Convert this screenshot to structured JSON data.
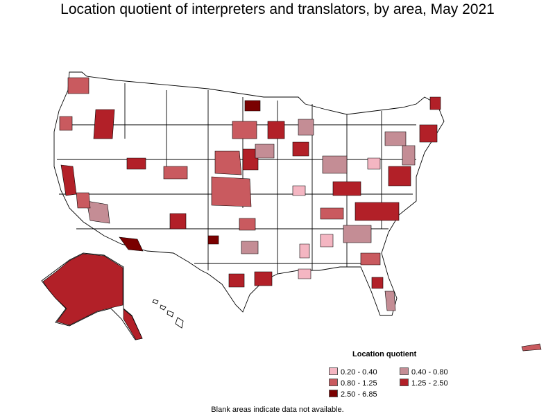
{
  "title": "Location quotient of interpreters and translators, by area, May 2021",
  "legend": {
    "title": "Location quotient",
    "items": [
      {
        "label": "0.20 - 0.40",
        "color": "#f4b6c2"
      },
      {
        "label": "0.40 - 0.80",
        "color": "#c48d95"
      },
      {
        "label": "0.80 - 1.25",
        "color": "#c95a5f"
      },
      {
        "label": "1.25 - 2.50",
        "color": "#b22028"
      },
      {
        "label": "2.50 - 6.85",
        "color": "#7a0000"
      }
    ]
  },
  "footnote": "Blank areas indicate data not available.",
  "colors": {
    "no_data": "#ffffff",
    "border": "#000000"
  }
}
